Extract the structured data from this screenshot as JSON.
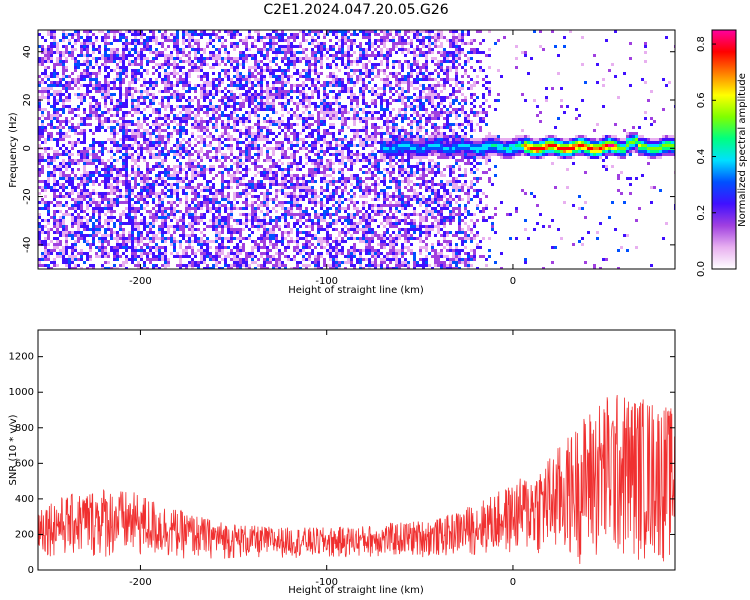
{
  "title": "C2E1.2024.047.20.05.G26",
  "chart_data": [
    {
      "type": "heatmap",
      "name": "spectrogram",
      "xlabel": "Height of straight line (km)",
      "ylabel": "Frequency (Hz)",
      "xlim": [
        -255,
        87
      ],
      "ylim": [
        -50,
        49
      ],
      "x_ticks": [
        "-200",
        "-100",
        "0"
      ],
      "x_tick_values": [
        -200,
        -100,
        0
      ],
      "y_ticks": [
        "40",
        "20",
        "0",
        "-20",
        "-40"
      ],
      "y_tick_values": [
        40,
        20,
        0,
        -20,
        -40
      ],
      "colorbar": {
        "label": "Normalized spectral amplitude",
        "range": [
          0,
          0.85
        ],
        "ticks": [
          "0.0",
          "0.2",
          "0.4",
          "0.6",
          "0.8"
        ],
        "tick_values": [
          0,
          0.2,
          0.4,
          0.6,
          0.8
        ],
        "colors": [
          "#ffffff",
          "#e8b0f0",
          "#a040e0",
          "#4010ff",
          "#0050ff",
          "#00e0ff",
          "#00ff80",
          "#80ff00",
          "#ffff00",
          "#ff8000",
          "#ff0000",
          "#ff00a0"
        ]
      },
      "features": {
        "noise_region_x": [
          -255,
          -35
        ],
        "fading_noise_x": [
          -35,
          -10
        ],
        "carrier_start_x": -72,
        "carrier_frequency_hz": 1,
        "oblique_streak_x": [
          -213,
          -205
        ],
        "oblique_streak_y": [
          38,
          -40
        ]
      }
    },
    {
      "type": "area",
      "name": "snr",
      "xlabel": "Height of straight line (km)",
      "ylabel": "SNR (10 * v/v)",
      "xlim": [
        -255,
        87
      ],
      "ylim": [
        0,
        1350
      ],
      "x_ticks": [
        "-200",
        "-100",
        "0"
      ],
      "x_tick_values": [
        -200,
        -100,
        0
      ],
      "y_ticks": [
        "0",
        "200",
        "400",
        "600",
        "800",
        "1000",
        "1200"
      ],
      "y_tick_values": [
        0,
        200,
        400,
        600,
        800,
        1000,
        1200
      ],
      "color": "#f03030",
      "envelope": {
        "x": [
          -255,
          -240,
          -220,
          -200,
          -180,
          -160,
          -140,
          -120,
          -100,
          -80,
          -60,
          -40,
          -30,
          -20,
          -10,
          0,
          10,
          20,
          30,
          40,
          50,
          60,
          70,
          80,
          87
        ],
        "upper": [
          380,
          420,
          470,
          430,
          340,
          280,
          250,
          240,
          240,
          250,
          270,
          290,
          330,
          380,
          430,
          490,
          560,
          650,
          760,
          900,
          1000,
          1000,
          980,
          950,
          900
        ],
        "lower": [
          80,
          70,
          60,
          60,
          60,
          60,
          60,
          70,
          60,
          70,
          70,
          70,
          80,
          80,
          80,
          80,
          80,
          60,
          50,
          20,
          20,
          30,
          40,
          30,
          20
        ]
      }
    }
  ]
}
